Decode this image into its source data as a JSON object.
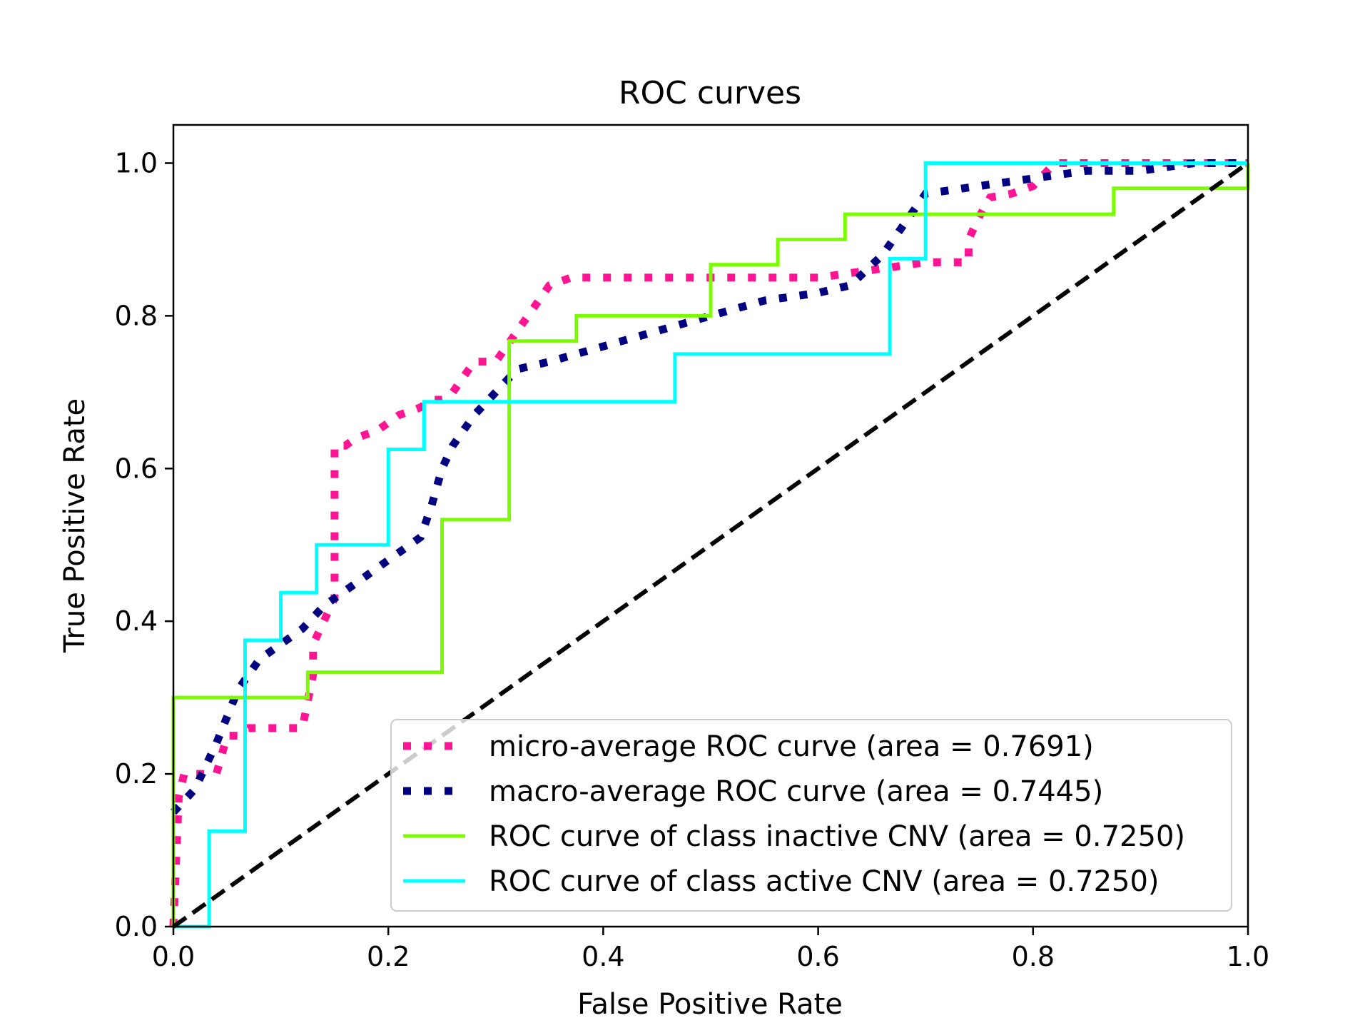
{
  "chart_data": {
    "type": "line",
    "title": "ROC curves",
    "xlabel": "False Positive Rate",
    "ylabel": "True Positive Rate",
    "xlim": [
      0.0,
      1.0
    ],
    "ylim": [
      0.0,
      1.05
    ],
    "x_ticks": [
      "0.0",
      "0.2",
      "0.4",
      "0.6",
      "0.8",
      "1.0"
    ],
    "y_ticks": [
      "0.0",
      "0.2",
      "0.4",
      "0.6",
      "0.8",
      "1.0"
    ],
    "grid": false,
    "legend_position": "lower-right",
    "series": [
      {
        "name": "micro-average ROC curve (area = 0.7691)",
        "color": "#ff1493",
        "style": "dotted",
        "x": [
          0.0,
          0.005,
          0.01,
          0.02,
          0.03,
          0.04,
          0.05,
          0.06,
          0.07,
          0.08,
          0.09,
          0.1,
          0.11,
          0.12,
          0.13,
          0.13,
          0.14,
          0.15,
          0.15,
          0.16,
          0.17,
          0.18,
          0.19,
          0.2,
          0.21,
          0.22,
          0.23,
          0.24,
          0.25,
          0.26,
          0.27,
          0.28,
          0.29,
          0.3,
          0.31,
          0.32,
          0.33,
          0.34,
          0.35,
          0.36,
          0.37,
          0.4,
          0.5,
          0.6,
          0.7,
          0.74,
          0.74,
          0.75,
          0.76,
          0.78,
          0.8,
          0.81,
          0.82,
          0.9,
          1.0
        ],
        "y": [
          0.0,
          0.17,
          0.2,
          0.2,
          0.2,
          0.2,
          0.25,
          0.25,
          0.26,
          0.26,
          0.26,
          0.26,
          0.26,
          0.26,
          0.33,
          0.37,
          0.4,
          0.43,
          0.63,
          0.63,
          0.64,
          0.645,
          0.65,
          0.66,
          0.67,
          0.675,
          0.68,
          0.69,
          0.69,
          0.7,
          0.72,
          0.74,
          0.74,
          0.74,
          0.76,
          0.78,
          0.8,
          0.82,
          0.84,
          0.845,
          0.85,
          0.85,
          0.85,
          0.85,
          0.87,
          0.87,
          0.9,
          0.93,
          0.955,
          0.96,
          0.97,
          0.985,
          1.0,
          1.0,
          1.0
        ]
      },
      {
        "name": "macro-average ROC curve (area = 0.7445)",
        "color": "#000080",
        "style": "dotted",
        "x": [
          0.0,
          0.02,
          0.04,
          0.06,
          0.08,
          0.1,
          0.12,
          0.14,
          0.16,
          0.18,
          0.2,
          0.22,
          0.23,
          0.24,
          0.25,
          0.26,
          0.28,
          0.3,
          0.32,
          0.35,
          0.4,
          0.45,
          0.5,
          0.55,
          0.6,
          0.63,
          0.66,
          0.69,
          0.7,
          0.75,
          0.8,
          0.85,
          0.9,
          0.95,
          1.0
        ],
        "y": [
          0.15,
          0.18,
          0.24,
          0.31,
          0.35,
          0.37,
          0.39,
          0.42,
          0.44,
          0.46,
          0.48,
          0.5,
          0.51,
          0.55,
          0.6,
          0.63,
          0.67,
          0.7,
          0.73,
          0.74,
          0.76,
          0.78,
          0.8,
          0.82,
          0.83,
          0.84,
          0.88,
          0.94,
          0.96,
          0.97,
          0.98,
          0.99,
          0.99,
          1.0,
          1.0
        ]
      },
      {
        "name": "ROC curve of class inactive CNV (area = 0.7250)",
        "color": "#7cfc00",
        "style": "solid",
        "x": [
          0.0,
          0.0,
          0.125,
          0.125,
          0.25,
          0.25,
          0.3125,
          0.3125,
          0.375,
          0.375,
          0.5,
          0.5,
          0.5625,
          0.5625,
          0.625,
          0.625,
          0.875,
          0.875,
          1.0,
          1.0
        ],
        "y": [
          0.0,
          0.3,
          0.3,
          0.333,
          0.333,
          0.533,
          0.533,
          0.767,
          0.767,
          0.8,
          0.8,
          0.867,
          0.867,
          0.9,
          0.9,
          0.933,
          0.933,
          0.967,
          0.967,
          1.0
        ]
      },
      {
        "name": "ROC curve of class active CNV (area = 0.7250)",
        "color": "#00ffff",
        "style": "solid",
        "x": [
          0.0,
          0.0333,
          0.0333,
          0.0667,
          0.0667,
          0.1,
          0.1,
          0.1333,
          0.1333,
          0.2,
          0.2,
          0.2333,
          0.2333,
          0.4667,
          0.4667,
          0.6667,
          0.6667,
          0.7,
          0.7,
          1.0
        ],
        "y": [
          0.0,
          0.0,
          0.125,
          0.125,
          0.375,
          0.375,
          0.4375,
          0.4375,
          0.5,
          0.5,
          0.625,
          0.625,
          0.6875,
          0.6875,
          0.75,
          0.75,
          0.875,
          0.875,
          1.0,
          1.0
        ]
      },
      {
        "name": "",
        "color": "#000000",
        "style": "dashed",
        "x": [
          0.0,
          1.0
        ],
        "y": [
          0.0,
          1.0
        ]
      }
    ]
  }
}
